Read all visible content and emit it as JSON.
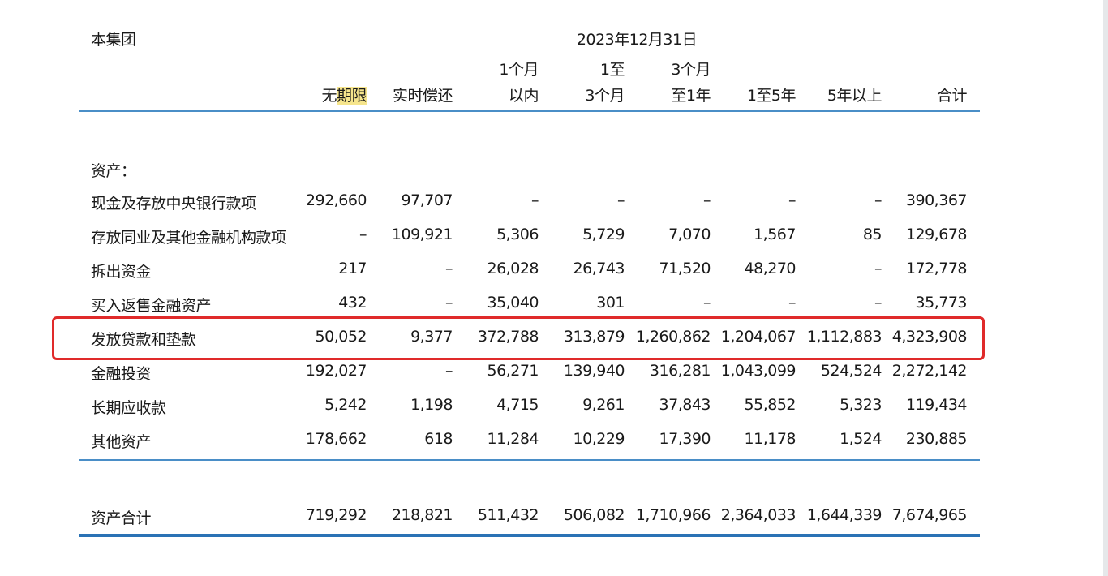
{
  "table": {
    "company": "本集团",
    "period": "2023年12月31日",
    "columns": [
      {
        "line1": "",
        "line2": "无期限",
        "highlight_part": "期限"
      },
      {
        "line1": "",
        "line2": "实时偿还"
      },
      {
        "line1": "1个月",
        "line2": "以内"
      },
      {
        "line1": "1至",
        "line2": "3个月"
      },
      {
        "line1": "3个月",
        "line2": "至1年"
      },
      {
        "line1": "",
        "line2": "1至5年"
      },
      {
        "line1": "",
        "line2": "5年以上"
      },
      {
        "line1": "",
        "line2": "合计"
      }
    ],
    "section_label": "资产：",
    "rows": [
      {
        "label": "现金及存放中央银行款项",
        "values": [
          "292,660",
          "97,707",
          "–",
          "–",
          "–",
          "–",
          "–",
          "390,367"
        ]
      },
      {
        "label": "存放同业及其他金融机构款项",
        "values": [
          "–",
          "109,921",
          "5,306",
          "5,729",
          "7,070",
          "1,567",
          "85",
          "129,678"
        ]
      },
      {
        "label": "拆出资金",
        "values": [
          "217",
          "–",
          "26,028",
          "26,743",
          "71,520",
          "48,270",
          "–",
          "172,778"
        ]
      },
      {
        "label": "买入返售金融资产",
        "values": [
          "432",
          "–",
          "35,040",
          "301",
          "–",
          "–",
          "–",
          "35,773"
        ]
      },
      {
        "label": "发放贷款和垫款",
        "values": [
          "50,052",
          "9,377",
          "372,788",
          "313,879",
          "1,260,862",
          "1,204,067",
          "1,112,883",
          "4,323,908"
        ]
      },
      {
        "label": "金融投资",
        "values": [
          "192,027",
          "–",
          "56,271",
          "139,940",
          "316,281",
          "1,043,099",
          "524,524",
          "2,272,142"
        ]
      },
      {
        "label": "长期应收款",
        "values": [
          "5,242",
          "1,198",
          "4,715",
          "9,261",
          "37,843",
          "55,852",
          "5,323",
          "119,434"
        ]
      },
      {
        "label": "其他资产",
        "values": [
          "178,662",
          "618",
          "11,284",
          "10,229",
          "17,390",
          "11,178",
          "1,524",
          "230,885"
        ]
      }
    ],
    "total": {
      "label": "资产合计",
      "values": [
        "719,292",
        "218,821",
        "511,432",
        "506,082",
        "1,710,966",
        "2,364,033",
        "1,644,339",
        "7,674,965"
      ]
    },
    "highlighted_row": "发放贷款和垫款"
  },
  "colors": {
    "rule": "#4a8ec7",
    "highlight_box": "#e02a2a",
    "header_highlight": "#f6e58c"
  }
}
